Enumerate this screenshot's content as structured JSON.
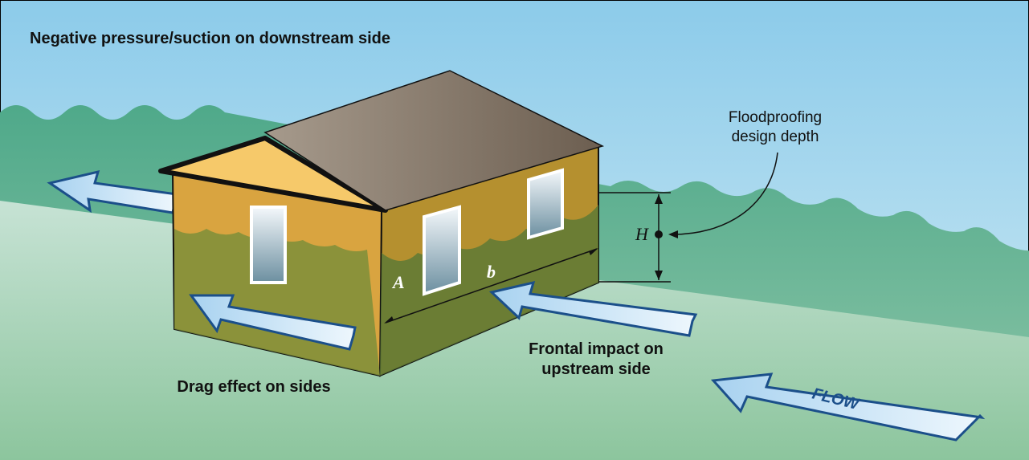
{
  "header": {
    "title": "Negative pressure/suction on downstream side"
  },
  "labels": {
    "design_depth": [
      "Floodproofing",
      "design depth"
    ],
    "height": "H",
    "width_a": "A",
    "length_b": "b",
    "frontal": [
      "Frontal impact on",
      "upstream side"
    ],
    "drag": "Drag effect on sides",
    "flow": "FLOW"
  }
}
